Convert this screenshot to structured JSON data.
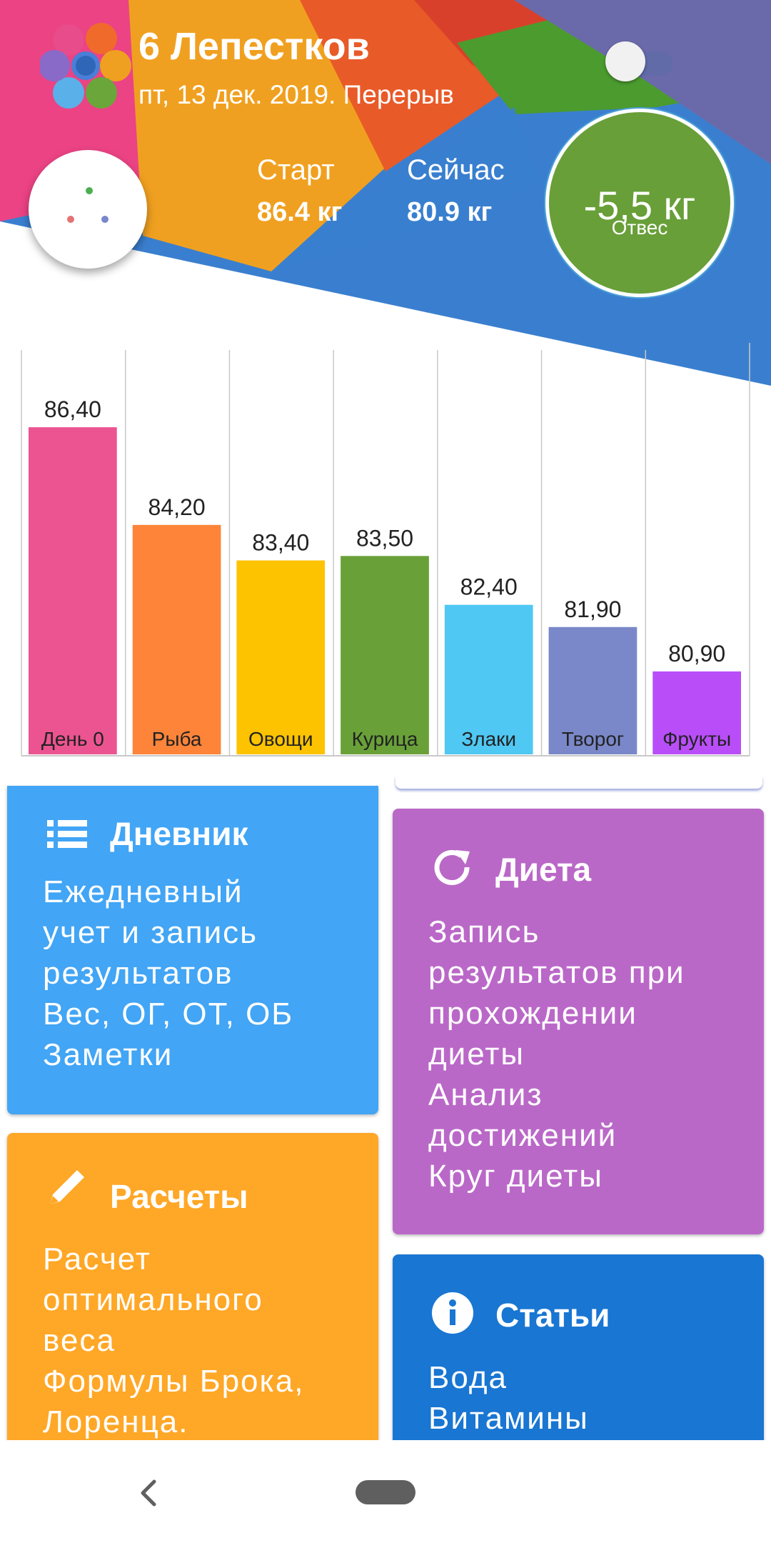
{
  "header": {
    "title": "6 Лепестков",
    "subtitle": "пт, 13 дек. 2019. Перерыв",
    "start_label": "Старт",
    "start_value": "86.4 кг",
    "now_label": "Сейчас",
    "now_value": "80.9 кг",
    "result_value": "-5,5 кг",
    "result_label": "Отвес",
    "toggle_on": false
  },
  "chart_data": {
    "type": "bar",
    "categories": [
      "День 0",
      "Рыба",
      "Овощи",
      "Курица",
      "Злаки",
      "Творог",
      "Фрукты"
    ],
    "values": [
      86.4,
      84.2,
      83.4,
      83.5,
      82.4,
      81.9,
      80.9
    ],
    "value_labels": [
      "86,40",
      "84,20",
      "83,40",
      "83,50",
      "82,40",
      "81,90",
      "80,90"
    ],
    "colors": [
      "#ec5491",
      "#fd8439",
      "#fdc300",
      "#69a138",
      "#4fc8f4",
      "#7a88c9",
      "#b94ef9"
    ],
    "grid": "vertical lines between bars",
    "legend": "none",
    "ylim": [
      79.0,
      88.3
    ]
  },
  "cards": {
    "diary": {
      "icon": "list-icon",
      "title": "Дневник",
      "lines": [
        "Ежедневный",
        "учет и запись",
        "результатов",
        "Вес, ОГ, ОТ, ОБ",
        "Заметки"
      ]
    },
    "diet": {
      "icon": "refresh-icon",
      "title": "Диета",
      "lines": [
        "Запись",
        "результатов при",
        "прохождении",
        "диеты",
        "Анализ",
        "достижений",
        "Круг диеты"
      ]
    },
    "calc": {
      "icon": "pencil-icon",
      "title": "Расчеты",
      "lines": [
        "Расчет",
        "оптимального",
        "веса",
        "Формулы Брока,",
        "Лоренца."
      ]
    },
    "articles": {
      "icon": "info-icon",
      "title": "Статьи",
      "lines": [
        "Вода",
        "Витамины"
      ]
    }
  },
  "colors": {
    "diary": "#42a5f5",
    "diet": "#ba68c8",
    "calc": "#ffa726",
    "articles": "#1976d2",
    "result": "#689f38"
  }
}
